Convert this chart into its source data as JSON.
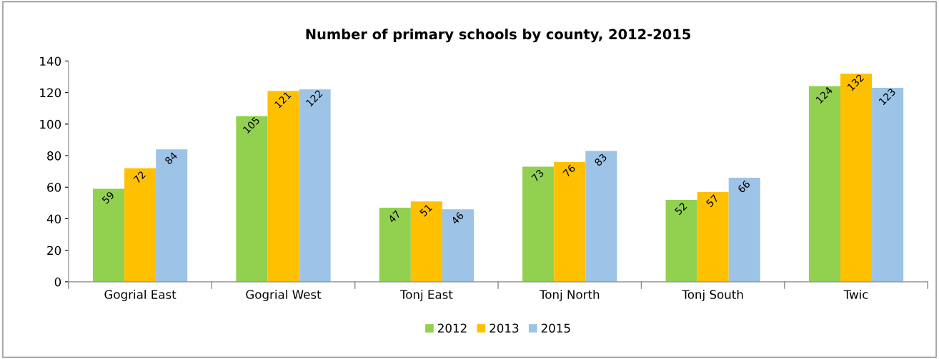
{
  "chart_data": {
    "type": "bar",
    "title": "Number of primary schools by county, 2012-2015",
    "categories": [
      "Gogrial East",
      "Gogrial West",
      "Tonj East",
      "Tonj North",
      "Tonj South",
      "Twic"
    ],
    "series": [
      {
        "name": "2012",
        "color": "#92d050",
        "values": [
          59,
          105,
          47,
          73,
          52,
          124
        ]
      },
      {
        "name": "2013",
        "color": "#ffc000",
        "values": [
          72,
          121,
          51,
          76,
          57,
          132
        ]
      },
      {
        "name": "2015",
        "color": "#9dc3e6",
        "values": [
          84,
          122,
          46,
          83,
          66,
          123
        ]
      }
    ],
    "ylim": [
      0,
      140
    ],
    "yticks": [
      0,
      20,
      40,
      60,
      80,
      100,
      120,
      140
    ],
    "data_labels": true,
    "grid": false,
    "legend": "bottom"
  }
}
